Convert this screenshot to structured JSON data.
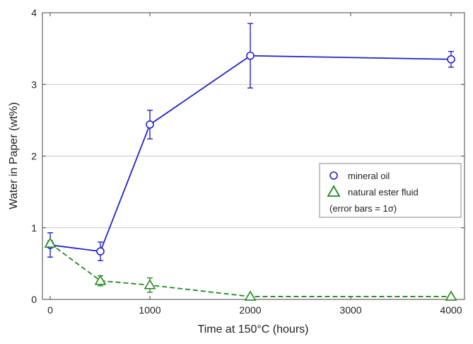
{
  "chart_data": {
    "type": "line",
    "xlabel": "Time at 150°C (hours)",
    "ylabel": "Water in Paper (wt%)",
    "xticks": [
      "0",
      "1000",
      "2000",
      "3000",
      "4000"
    ],
    "yticks": [
      "0",
      "1",
      "2",
      "3",
      "4"
    ],
    "ylim": [
      0,
      4
    ],
    "grid": "horizontal",
    "legend_position": "right-middle",
    "legend_note": "(error bars = 1σ)",
    "series": [
      {
        "name": "mineral oil",
        "color": "#2222cc",
        "marker": "circle",
        "line_style": "solid",
        "x": [
          "0",
          "500",
          "1000",
          "2000",
          "4000"
        ],
        "values": [
          0.76,
          0.67,
          2.44,
          3.4,
          3.35
        ],
        "error": [
          0.17,
          0.13,
          0.2,
          0.45,
          0.11
        ]
      },
      {
        "name": "natural ester fluid",
        "color": "#228822",
        "marker": "triangle",
        "line_style": "dashed",
        "x": [
          "0",
          "500",
          "1000",
          "2000",
          "4000"
        ],
        "values": [
          0.78,
          0.26,
          0.2,
          0.04,
          0.04
        ],
        "error": [
          0.04,
          0.07,
          0.1,
          0.02,
          0.02
        ]
      }
    ]
  }
}
